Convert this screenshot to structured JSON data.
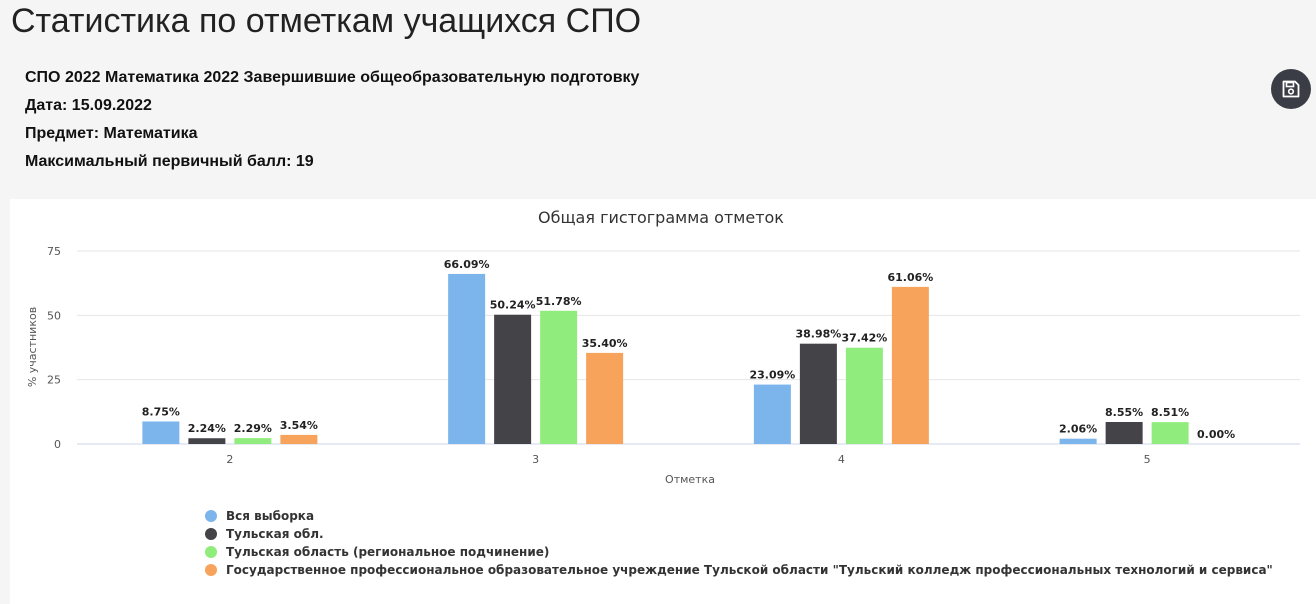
{
  "page": {
    "title": "Статистика по отметкам учащихся СПО"
  },
  "info": {
    "line1": "СПО 2022 Математика 2022 Завершившие общеобразовательную подготовку",
    "line2": "Дата: 15.09.2022",
    "line3": "Предмет: Математика",
    "line4": "Максимальный первичный балл: 19"
  },
  "toolbar": {
    "save_icon": "floppy-disk-icon"
  },
  "chart_data": {
    "type": "bar",
    "title": "Общая гистограмма отметок",
    "xlabel": "Отметка",
    "ylabel": "% участников",
    "categories": [
      "2",
      "3",
      "4",
      "5"
    ],
    "ylim": [
      0,
      75
    ],
    "yticks": [
      0,
      25,
      50,
      75
    ],
    "grid": true,
    "legend_position": "bottom-left",
    "series": [
      {
        "name": "Вся выборка",
        "color": "#7cb5ec",
        "values": [
          8.75,
          66.09,
          23.09,
          2.06
        ],
        "labels": [
          "8.75%",
          "66.09%",
          "23.09%",
          "2.06%"
        ]
      },
      {
        "name": "Тульская обл.",
        "color": "#434348",
        "values": [
          2.24,
          50.24,
          38.98,
          8.55
        ],
        "labels": [
          "2.24%",
          "50.24%",
          "38.98%",
          "8.55%"
        ]
      },
      {
        "name": "Тульская область (региональное подчинение)",
        "color": "#90ed7d",
        "values": [
          2.29,
          51.78,
          37.42,
          8.51
        ],
        "labels": [
          "2.29%",
          "51.78%",
          "37.42%",
          "8.51%"
        ]
      },
      {
        "name": "Государственное профессиональное образовательное учреждение Тульской области \"Тульский колледж профессиональных технологий и сервиса\"",
        "color": "#f7a35c",
        "values": [
          3.54,
          35.4,
          61.06,
          0.0
        ],
        "labels": [
          "3.54%",
          "35.40%",
          "61.06%",
          "0.00%"
        ]
      }
    ]
  }
}
